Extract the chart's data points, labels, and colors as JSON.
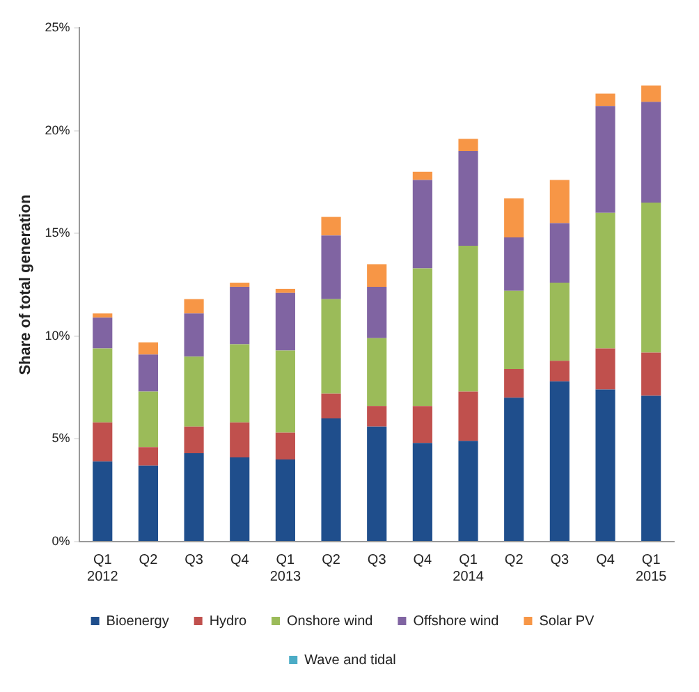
{
  "chart_data": {
    "type": "bar",
    "stacked": true,
    "ylabel": "Share of total generation",
    "categories": [
      "Q1\n2012",
      "Q2",
      "Q3",
      "Q4",
      "Q1\n2013",
      "Q2",
      "Q3",
      "Q4",
      "Q1\n2014",
      "Q2",
      "Q3",
      "Q4",
      "Q1\n2015"
    ],
    "series": [
      {
        "name": "Bioenergy",
        "color": "#1f4e8c",
        "values": [
          3.9,
          3.7,
          4.3,
          4.1,
          4.0,
          6.0,
          5.6,
          4.8,
          4.9,
          7.0,
          7.8,
          7.4,
          7.1
        ]
      },
      {
        "name": "Hydro",
        "color": "#c0504d",
        "values": [
          1.9,
          0.9,
          1.3,
          1.7,
          1.3,
          1.2,
          1.0,
          1.8,
          2.4,
          1.4,
          1.0,
          2.0,
          2.1
        ]
      },
      {
        "name": "Onshore wind",
        "color": "#9bbb59",
        "values": [
          3.6,
          2.7,
          3.4,
          3.8,
          4.0,
          4.6,
          3.3,
          6.7,
          7.1,
          3.8,
          3.8,
          6.6,
          7.3
        ]
      },
      {
        "name": "Offshore wind",
        "color": "#8064a2",
        "values": [
          1.5,
          1.8,
          2.1,
          2.8,
          2.8,
          3.1,
          2.5,
          4.3,
          4.6,
          2.6,
          2.9,
          5.2,
          4.9
        ]
      },
      {
        "name": "Solar PV",
        "color": "#f79646",
        "values": [
          0.2,
          0.6,
          0.7,
          0.2,
          0.2,
          0.9,
          1.1,
          0.4,
          0.6,
          1.9,
          2.1,
          0.6,
          0.8
        ]
      },
      {
        "name": "Wave and tidal",
        "color": "#4bacc6",
        "values": [
          0,
          0,
          0,
          0,
          0,
          0,
          0,
          0,
          0,
          0,
          0,
          0,
          0
        ]
      }
    ],
    "ylim": [
      0,
      25
    ],
    "yticks": [
      {
        "value": 0,
        "label": "0%"
      },
      {
        "value": 5,
        "label": "5%"
      },
      {
        "value": 10,
        "label": "10%"
      },
      {
        "value": 15,
        "label": "15%"
      },
      {
        "value": 20,
        "label": "20%"
      },
      {
        "value": 25,
        "label": "25%"
      }
    ],
    "grid": false,
    "legend": "bottom"
  }
}
